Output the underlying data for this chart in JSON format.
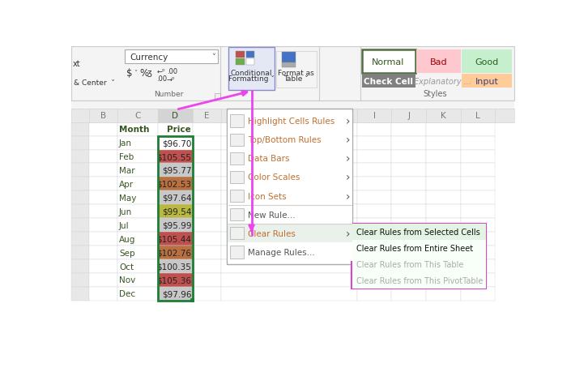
{
  "months": [
    "Month",
    "Jan",
    "Feb",
    "Mar",
    "Apr",
    "May",
    "Jun",
    "Jul",
    "Aug",
    "Sep",
    "Oct",
    "Nov",
    "Dec"
  ],
  "prices": [
    "Price",
    "$96.70",
    "$105.55",
    "$95.77",
    "$102.53",
    "$97.64",
    "$99.54",
    "$95.99",
    "$105.44",
    "$102.76",
    "$100.35",
    "$105.36",
    "$97.96"
  ],
  "cell_colors": [
    "#ffffff",
    "#ffffff",
    "#c0504d",
    "#c8c8c8",
    "#b87040",
    "#c8c8c8",
    "#bab840",
    "#c8c8c8",
    "#c0504d",
    "#b87040",
    "#c8c8c8",
    "#c0504d",
    "#c8c8c8"
  ],
  "excel_bg": "#ffffff",
  "grid_color": "#d4d4d4",
  "col_header_bg": "#e8e8e8",
  "col_header_color": "#7a7a7a",
  "col_D_header_bg": "#d4d4d4",
  "col_D_header_color": "#375623",
  "month_text_color": "#375623",
  "toolbar_bg": "#f4f4f4",
  "menu_bg": "#ffffff",
  "menu_item_color": "#c07030",
  "menu_item_dark": "#555555",
  "menu_highlight_bg": "#eaf0ea",
  "submenu_bg": "#f8fff8",
  "submenu_border": "#dd44cc",
  "arrow_color": "#ee44ee",
  "normal_bg": "#ffffff",
  "normal_border": "#507040",
  "bad_bg": "#ffc7ce",
  "bad_text": "#9c0006",
  "good_bg": "#c6efce",
  "good_text": "#276221",
  "checkcell_bg": "#808080",
  "input_bg": "#ffcc99",
  "input_text": "#3f3f76",
  "explanatory_text": "#999999"
}
